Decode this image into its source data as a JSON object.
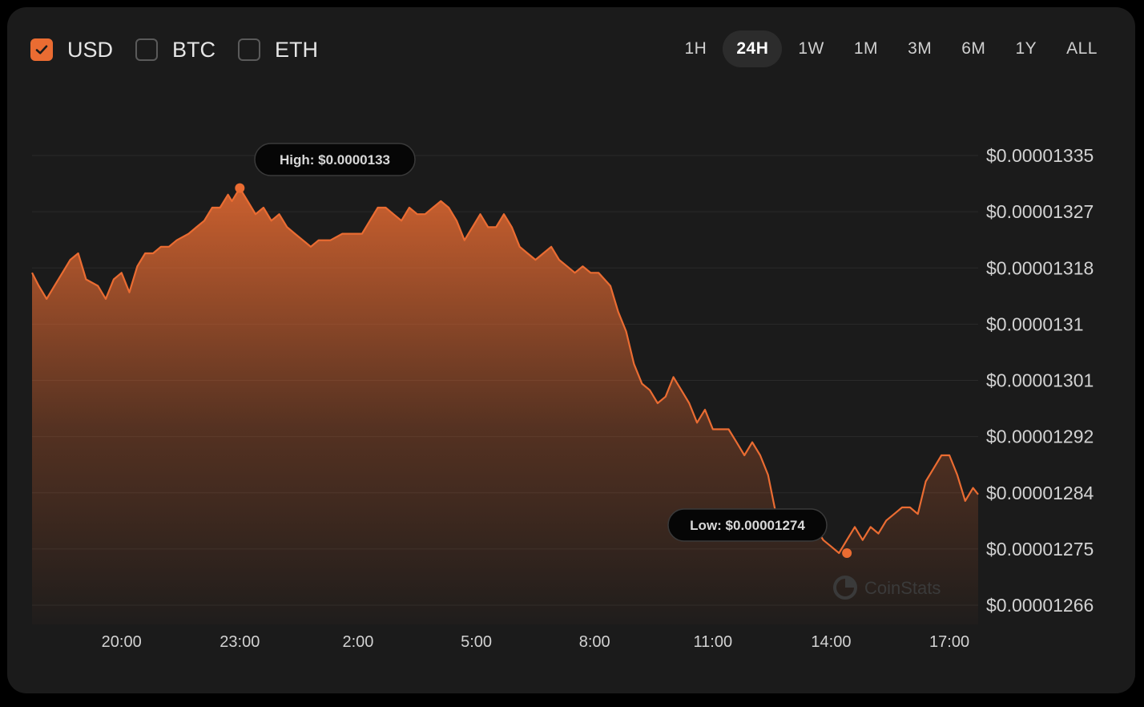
{
  "currencies": [
    {
      "label": "USD",
      "checked": true
    },
    {
      "label": "BTC",
      "checked": false
    },
    {
      "label": "ETH",
      "checked": false
    }
  ],
  "ranges": [
    "1H",
    "24H",
    "1W",
    "1M",
    "3M",
    "6M",
    "1Y",
    "ALL"
  ],
  "active_range": "24H",
  "colors": {
    "accent": "#ea6c32",
    "background": "#1b1b1b",
    "grid": "#2a2a2a"
  },
  "watermark": {
    "text": "CoinStats",
    "icon": "coinstats-logo-icon"
  },
  "chart_data": {
    "type": "area",
    "y_ticks": [
      "$0.00001335",
      "$0.00001327",
      "$0.00001318",
      "$0.0000131",
      "$0.00001301",
      "$0.00001292",
      "$0.00001284",
      "$0.00001275",
      "$0.00001266"
    ],
    "ylim": [
      1.266e-05,
      1.335e-05
    ],
    "x_ticks": [
      "20:00",
      "23:00",
      "2:00",
      "5:00",
      "8:00",
      "11:00",
      "14:00",
      "17:00"
    ],
    "x_tick_hours": [
      20,
      23,
      26,
      29,
      32,
      35,
      38,
      41
    ],
    "xlim": [
      17.73,
      41.73
    ],
    "high": {
      "label": "High: $0.0000133",
      "hour": 23.0,
      "value": 1.33e-05
    },
    "low": {
      "label": "Low: $0.00001274",
      "hour": 38.4,
      "value": 1.274e-05
    },
    "x": [
      17.73,
      17.9,
      18.1,
      18.3,
      18.5,
      18.7,
      18.9,
      19.1,
      19.4,
      19.6,
      19.8,
      20.0,
      20.2,
      20.4,
      20.6,
      20.8,
      21.0,
      21.2,
      21.4,
      21.7,
      21.9,
      22.1,
      22.3,
      22.5,
      22.7,
      22.8,
      23.0,
      23.2,
      23.4,
      23.6,
      23.8,
      24.0,
      24.2,
      24.4,
      24.6,
      24.8,
      25.0,
      25.3,
      25.6,
      25.9,
      26.1,
      26.3,
      26.5,
      26.7,
      26.9,
      27.1,
      27.3,
      27.5,
      27.7,
      27.9,
      28.1,
      28.3,
      28.5,
      28.7,
      28.9,
      29.1,
      29.3,
      29.5,
      29.7,
      29.9,
      30.1,
      30.3,
      30.5,
      30.7,
      30.9,
      31.1,
      31.3,
      31.5,
      31.7,
      31.9,
      32.1,
      32.4,
      32.6,
      32.8,
      33.0,
      33.2,
      33.4,
      33.6,
      33.8,
      34.0,
      34.2,
      34.4,
      34.6,
      34.8,
      35.0,
      35.2,
      35.4,
      35.6,
      35.8,
      36.0,
      36.2,
      36.4,
      36.6,
      36.8,
      37.0,
      37.2,
      37.4,
      37.6,
      37.8,
      38.0,
      38.2,
      38.4,
      38.6,
      38.8,
      39.0,
      39.2,
      39.4,
      39.6,
      39.8,
      40.0,
      40.2,
      40.4,
      40.6,
      40.8,
      41.0,
      41.2,
      41.4,
      41.6,
      41.73
    ],
    "values": [
      1.317e-05,
      1.315e-05,
      1.313e-05,
      1.315e-05,
      1.317e-05,
      1.319e-05,
      1.32e-05,
      1.316e-05,
      1.315e-05,
      1.313e-05,
      1.316e-05,
      1.317e-05,
      1.314e-05,
      1.318e-05,
      1.32e-05,
      1.32e-05,
      1.321e-05,
      1.321e-05,
      1.322e-05,
      1.323e-05,
      1.324e-05,
      1.325e-05,
      1.327e-05,
      1.327e-05,
      1.329e-05,
      1.328e-05,
      1.33e-05,
      1.328e-05,
      1.326e-05,
      1.327e-05,
      1.325e-05,
      1.326e-05,
      1.324e-05,
      1.323e-05,
      1.322e-05,
      1.321e-05,
      1.322e-05,
      1.322e-05,
      1.323e-05,
      1.323e-05,
      1.323e-05,
      1.325e-05,
      1.327e-05,
      1.327e-05,
      1.326e-05,
      1.325e-05,
      1.327e-05,
      1.326e-05,
      1.326e-05,
      1.327e-05,
      1.328e-05,
      1.327e-05,
      1.325e-05,
      1.322e-05,
      1.324e-05,
      1.326e-05,
      1.324e-05,
      1.324e-05,
      1.326e-05,
      1.324e-05,
      1.321e-05,
      1.32e-05,
      1.319e-05,
      1.32e-05,
      1.321e-05,
      1.319e-05,
      1.318e-05,
      1.317e-05,
      1.318e-05,
      1.317e-05,
      1.317e-05,
      1.315e-05,
      1.311e-05,
      1.308e-05,
      1.303e-05,
      1.3e-05,
      1.299e-05,
      1.297e-05,
      1.298e-05,
      1.301e-05,
      1.299e-05,
      1.297e-05,
      1.294e-05,
      1.296e-05,
      1.293e-05,
      1.293e-05,
      1.293e-05,
      1.291e-05,
      1.289e-05,
      1.291e-05,
      1.289e-05,
      1.286e-05,
      1.28e-05,
      1.277e-05,
      1.279e-05,
      1.278e-05,
      1.276e-05,
      1.278e-05,
      1.276e-05,
      1.275e-05,
      1.274e-05,
      1.276e-05,
      1.278e-05,
      1.276e-05,
      1.278e-05,
      1.277e-05,
      1.279e-05,
      1.28e-05,
      1.281e-05,
      1.281e-05,
      1.28e-05,
      1.285e-05,
      1.287e-05,
      1.289e-05,
      1.289e-05,
      1.286e-05,
      1.282e-05,
      1.284e-05,
      1.283e-05
    ],
    "xlabel": "",
    "ylabel": "",
    "grid": true,
    "legend": "none"
  }
}
